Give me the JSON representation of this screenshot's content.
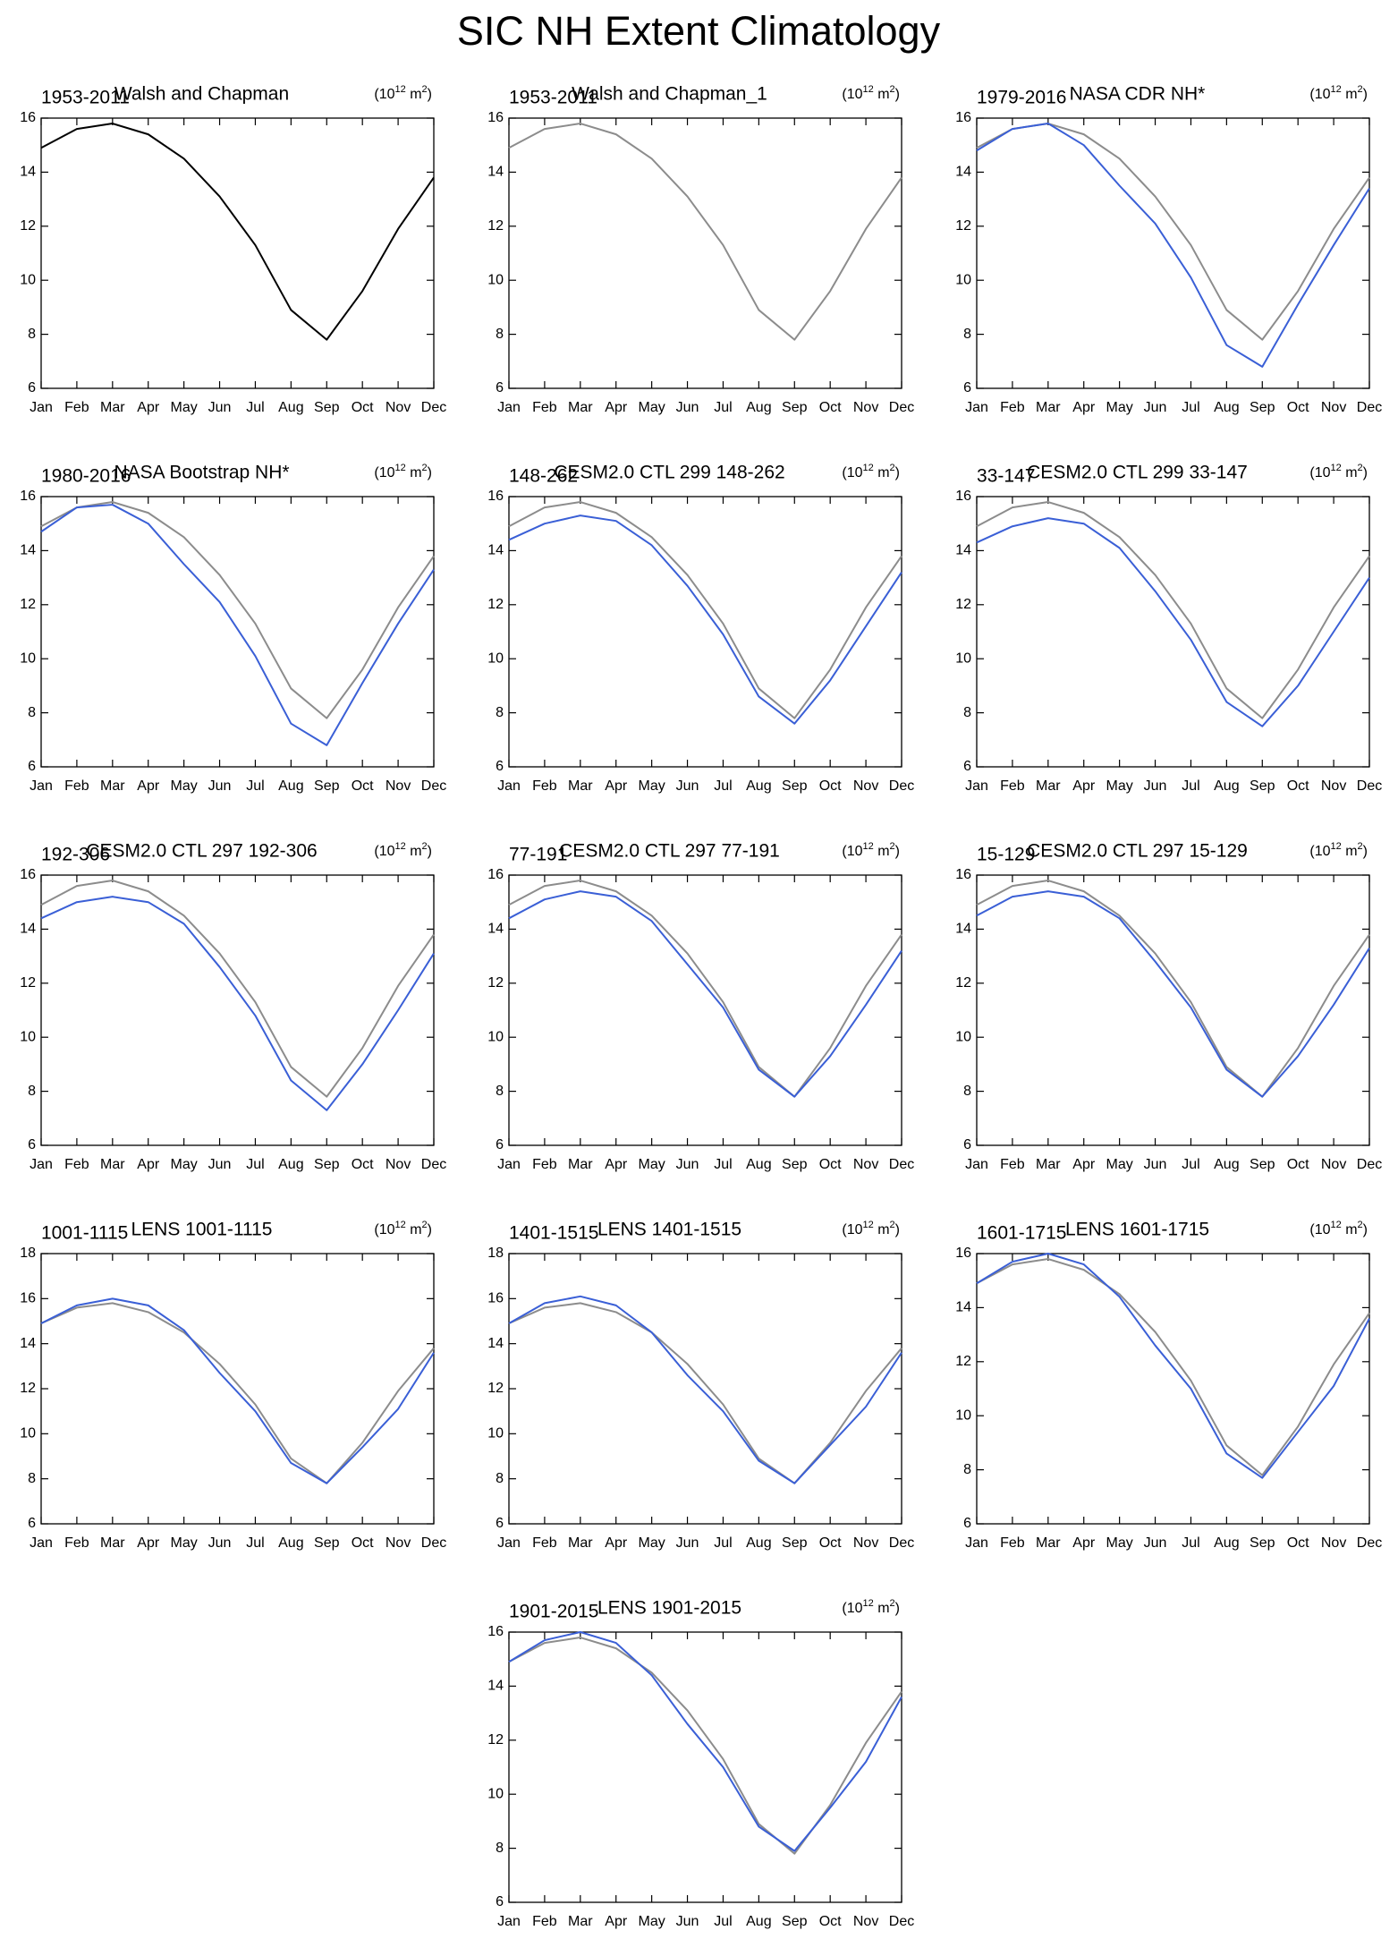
{
  "title": "SIC NH Extent Climatology",
  "chart_data": [
    {
      "type": "line",
      "title_left": "1953-2011",
      "title_center": "Walsh and Chapman",
      "units": [
        "(10",
        "12",
        " m",
        "2",
        ")"
      ],
      "categories": [
        "Jan",
        "Feb",
        "Mar",
        "Apr",
        "May",
        "Jun",
        "Jul",
        "Aug",
        "Sep",
        "Oct",
        "Nov",
        "Dec"
      ],
      "ylim": [
        6,
        16
      ],
      "yticks": [
        6,
        8,
        10,
        12,
        14,
        16
      ],
      "series": [
        {
          "color": "#000000",
          "values": [
            14.9,
            15.6,
            15.8,
            15.4,
            14.5,
            13.1,
            11.3,
            8.9,
            7.8,
            9.6,
            11.9,
            13.8
          ]
        }
      ]
    },
    {
      "type": "line",
      "title_left": "1953-2011",
      "title_center": "Walsh and Chapman_1",
      "units": [
        "(10",
        "12",
        " m",
        "2",
        ")"
      ],
      "categories": [
        "Jan",
        "Feb",
        "Mar",
        "Apr",
        "May",
        "Jun",
        "Jul",
        "Aug",
        "Sep",
        "Oct",
        "Nov",
        "Dec"
      ],
      "ylim": [
        6,
        16
      ],
      "yticks": [
        6,
        8,
        10,
        12,
        14,
        16
      ],
      "series": [
        {
          "color": "#8c8c8c",
          "values": [
            14.9,
            15.6,
            15.8,
            15.4,
            14.5,
            13.1,
            11.3,
            8.9,
            7.8,
            9.6,
            11.9,
            13.8
          ]
        }
      ]
    },
    {
      "type": "line",
      "title_left": "1979-2016",
      "title_center": "NASA CDR NH*",
      "units": [
        "(10",
        "12",
        " m",
        "2",
        ")"
      ],
      "categories": [
        "Jan",
        "Feb",
        "Mar",
        "Apr",
        "May",
        "Jun",
        "Jul",
        "Aug",
        "Sep",
        "Oct",
        "Nov",
        "Dec"
      ],
      "ylim": [
        6,
        16
      ],
      "yticks": [
        6,
        8,
        10,
        12,
        14,
        16
      ],
      "series": [
        {
          "color": "#8c8c8c",
          "values": [
            14.9,
            15.6,
            15.8,
            15.4,
            14.5,
            13.1,
            11.3,
            8.9,
            7.8,
            9.6,
            11.9,
            13.8
          ]
        },
        {
          "color": "#3a5fd6",
          "values": [
            14.8,
            15.6,
            15.8,
            15.0,
            13.5,
            12.1,
            10.1,
            7.6,
            6.8,
            9.1,
            11.3,
            13.4
          ]
        }
      ]
    },
    {
      "type": "line",
      "title_left": "1980-2016",
      "title_center": "NASA Bootstrap NH*",
      "units": [
        "(10",
        "12",
        " m",
        "2",
        ")"
      ],
      "categories": [
        "Jan",
        "Feb",
        "Mar",
        "Apr",
        "May",
        "Jun",
        "Jul",
        "Aug",
        "Sep",
        "Oct",
        "Nov",
        "Dec"
      ],
      "ylim": [
        6,
        16
      ],
      "yticks": [
        6,
        8,
        10,
        12,
        14,
        16
      ],
      "series": [
        {
          "color": "#8c8c8c",
          "values": [
            14.9,
            15.6,
            15.8,
            15.4,
            14.5,
            13.1,
            11.3,
            8.9,
            7.8,
            9.6,
            11.9,
            13.8
          ]
        },
        {
          "color": "#3a5fd6",
          "values": [
            14.7,
            15.6,
            15.7,
            15.0,
            13.5,
            12.1,
            10.1,
            7.6,
            6.8,
            9.1,
            11.3,
            13.3
          ]
        }
      ]
    },
    {
      "type": "line",
      "title_left": "148-262",
      "title_center": "CESM2.0 CTL 299 148-262",
      "units": [
        "(10",
        "12",
        " m",
        "2",
        ")"
      ],
      "categories": [
        "Jan",
        "Feb",
        "Mar",
        "Apr",
        "May",
        "Jun",
        "Jul",
        "Aug",
        "Sep",
        "Oct",
        "Nov",
        "Dec"
      ],
      "ylim": [
        6,
        16
      ],
      "yticks": [
        6,
        8,
        10,
        12,
        14,
        16
      ],
      "series": [
        {
          "color": "#8c8c8c",
          "values": [
            14.9,
            15.6,
            15.8,
            15.4,
            14.5,
            13.1,
            11.3,
            8.9,
            7.8,
            9.6,
            11.9,
            13.8
          ]
        },
        {
          "color": "#3a5fd6",
          "values": [
            14.4,
            15.0,
            15.3,
            15.1,
            14.2,
            12.7,
            10.9,
            8.6,
            7.6,
            9.2,
            11.2,
            13.2
          ]
        }
      ]
    },
    {
      "type": "line",
      "title_left": "33-147",
      "title_center": "CESM2.0 CTL 299 33-147",
      "units": [
        "(10",
        "12",
        " m",
        "2",
        ")"
      ],
      "categories": [
        "Jan",
        "Feb",
        "Mar",
        "Apr",
        "May",
        "Jun",
        "Jul",
        "Aug",
        "Sep",
        "Oct",
        "Nov",
        "Dec"
      ],
      "ylim": [
        6,
        16
      ],
      "yticks": [
        6,
        8,
        10,
        12,
        14,
        16
      ],
      "series": [
        {
          "color": "#8c8c8c",
          "values": [
            14.9,
            15.6,
            15.8,
            15.4,
            14.5,
            13.1,
            11.3,
            8.9,
            7.8,
            9.6,
            11.9,
            13.8
          ]
        },
        {
          "color": "#3a5fd6",
          "values": [
            14.3,
            14.9,
            15.2,
            15.0,
            14.1,
            12.5,
            10.7,
            8.4,
            7.5,
            9.0,
            11.0,
            13.0
          ]
        }
      ]
    },
    {
      "type": "line",
      "title_left": "192-306",
      "title_center": "CESM2.0 CTL 297 192-306",
      "units": [
        "(10",
        "12",
        " m",
        "2",
        ")"
      ],
      "categories": [
        "Jan",
        "Feb",
        "Mar",
        "Apr",
        "May",
        "Jun",
        "Jul",
        "Aug",
        "Sep",
        "Oct",
        "Nov",
        "Dec"
      ],
      "ylim": [
        6,
        16
      ],
      "yticks": [
        6,
        8,
        10,
        12,
        14,
        16
      ],
      "series": [
        {
          "color": "#8c8c8c",
          "values": [
            14.9,
            15.6,
            15.8,
            15.4,
            14.5,
            13.1,
            11.3,
            8.9,
            7.8,
            9.6,
            11.9,
            13.8
          ]
        },
        {
          "color": "#3a5fd6",
          "values": [
            14.4,
            15.0,
            15.2,
            15.0,
            14.2,
            12.6,
            10.8,
            8.4,
            7.3,
            9.0,
            11.0,
            13.1
          ]
        }
      ]
    },
    {
      "type": "line",
      "title_left": "77-191",
      "title_center": "CESM2.0 CTL 297 77-191",
      "units": [
        "(10",
        "12",
        " m",
        "2",
        ")"
      ],
      "categories": [
        "Jan",
        "Feb",
        "Mar",
        "Apr",
        "May",
        "Jun",
        "Jul",
        "Aug",
        "Sep",
        "Oct",
        "Nov",
        "Dec"
      ],
      "ylim": [
        6,
        16
      ],
      "yticks": [
        6,
        8,
        10,
        12,
        14,
        16
      ],
      "series": [
        {
          "color": "#8c8c8c",
          "values": [
            14.9,
            15.6,
            15.8,
            15.4,
            14.5,
            13.1,
            11.3,
            8.9,
            7.8,
            9.6,
            11.9,
            13.8
          ]
        },
        {
          "color": "#3a5fd6",
          "values": [
            14.4,
            15.1,
            15.4,
            15.2,
            14.3,
            12.7,
            11.1,
            8.8,
            7.8,
            9.3,
            11.2,
            13.2
          ]
        }
      ]
    },
    {
      "type": "line",
      "title_left": "15-129",
      "title_center": "CESM2.0 CTL 297 15-129",
      "units": [
        "(10",
        "12",
        " m",
        "2",
        ")"
      ],
      "categories": [
        "Jan",
        "Feb",
        "Mar",
        "Apr",
        "May",
        "Jun",
        "Jul",
        "Aug",
        "Sep",
        "Oct",
        "Nov",
        "Dec"
      ],
      "ylim": [
        6,
        16
      ],
      "yticks": [
        6,
        8,
        10,
        12,
        14,
        16
      ],
      "series": [
        {
          "color": "#8c8c8c",
          "values": [
            14.9,
            15.6,
            15.8,
            15.4,
            14.5,
            13.1,
            11.3,
            8.9,
            7.8,
            9.6,
            11.9,
            13.8
          ]
        },
        {
          "color": "#3a5fd6",
          "values": [
            14.5,
            15.2,
            15.4,
            15.2,
            14.4,
            12.8,
            11.1,
            8.8,
            7.8,
            9.3,
            11.2,
            13.3
          ]
        }
      ]
    },
    {
      "type": "line",
      "title_left": "1001-1115",
      "title_center": "LENS 1001-1115",
      "units": [
        "(10",
        "12",
        " m",
        "2",
        ")"
      ],
      "categories": [
        "Jan",
        "Feb",
        "Mar",
        "Apr",
        "May",
        "Jun",
        "Jul",
        "Aug",
        "Sep",
        "Oct",
        "Nov",
        "Dec"
      ],
      "ylim": [
        6,
        18
      ],
      "yticks": [
        6,
        8,
        10,
        12,
        14,
        16,
        18
      ],
      "series": [
        {
          "color": "#8c8c8c",
          "values": [
            14.9,
            15.6,
            15.8,
            15.4,
            14.5,
            13.1,
            11.3,
            8.9,
            7.8,
            9.6,
            11.9,
            13.8
          ]
        },
        {
          "color": "#3a5fd6",
          "values": [
            14.9,
            15.7,
            16.0,
            15.7,
            14.6,
            12.7,
            11.0,
            8.7,
            7.8,
            9.4,
            11.1,
            13.6
          ]
        }
      ]
    },
    {
      "type": "line",
      "title_left": "1401-1515",
      "title_center": "LENS 1401-1515",
      "units": [
        "(10",
        "12",
        " m",
        "2",
        ")"
      ],
      "categories": [
        "Jan",
        "Feb",
        "Mar",
        "Apr",
        "May",
        "Jun",
        "Jul",
        "Aug",
        "Sep",
        "Oct",
        "Nov",
        "Dec"
      ],
      "ylim": [
        6,
        18
      ],
      "yticks": [
        6,
        8,
        10,
        12,
        14,
        16,
        18
      ],
      "series": [
        {
          "color": "#8c8c8c",
          "values": [
            14.9,
            15.6,
            15.8,
            15.4,
            14.5,
            13.1,
            11.3,
            8.9,
            7.8,
            9.6,
            11.9,
            13.8
          ]
        },
        {
          "color": "#3a5fd6",
          "values": [
            14.9,
            15.8,
            16.1,
            15.7,
            14.5,
            12.6,
            11.0,
            8.8,
            7.8,
            9.5,
            11.2,
            13.6
          ]
        }
      ]
    },
    {
      "type": "line",
      "title_left": "1601-1715",
      "title_center": "LENS 1601-1715",
      "units": [
        "(10",
        "12",
        " m",
        "2",
        ")"
      ],
      "categories": [
        "Jan",
        "Feb",
        "Mar",
        "Apr",
        "May",
        "Jun",
        "Jul",
        "Aug",
        "Sep",
        "Oct",
        "Nov",
        "Dec"
      ],
      "ylim": [
        6,
        16
      ],
      "yticks": [
        6,
        8,
        10,
        12,
        14,
        16
      ],
      "series": [
        {
          "color": "#8c8c8c",
          "values": [
            14.9,
            15.6,
            15.8,
            15.4,
            14.5,
            13.1,
            11.3,
            8.9,
            7.8,
            9.6,
            11.9,
            13.8
          ]
        },
        {
          "color": "#3a5fd6",
          "values": [
            14.9,
            15.7,
            16.0,
            15.6,
            14.4,
            12.6,
            11.0,
            8.6,
            7.7,
            9.4,
            11.1,
            13.6
          ]
        }
      ]
    },
    {
      "type": "line",
      "title_left": "1901-2015",
      "title_center": "LENS 1901-2015",
      "units": [
        "(10",
        "12",
        " m",
        "2",
        ")"
      ],
      "categories": [
        "Jan",
        "Feb",
        "Mar",
        "Apr",
        "May",
        "Jun",
        "Jul",
        "Aug",
        "Sep",
        "Oct",
        "Nov",
        "Dec"
      ],
      "ylim": [
        6,
        16
      ],
      "yticks": [
        6,
        8,
        10,
        12,
        14,
        16
      ],
      "series": [
        {
          "color": "#8c8c8c",
          "values": [
            14.9,
            15.6,
            15.8,
            15.4,
            14.5,
            13.1,
            11.3,
            8.9,
            7.8,
            9.6,
            11.9,
            13.8
          ]
        },
        {
          "color": "#3a5fd6",
          "values": [
            14.9,
            15.7,
            16.0,
            15.6,
            14.4,
            12.6,
            11.0,
            8.8,
            7.9,
            9.5,
            11.2,
            13.6
          ]
        }
      ]
    }
  ]
}
